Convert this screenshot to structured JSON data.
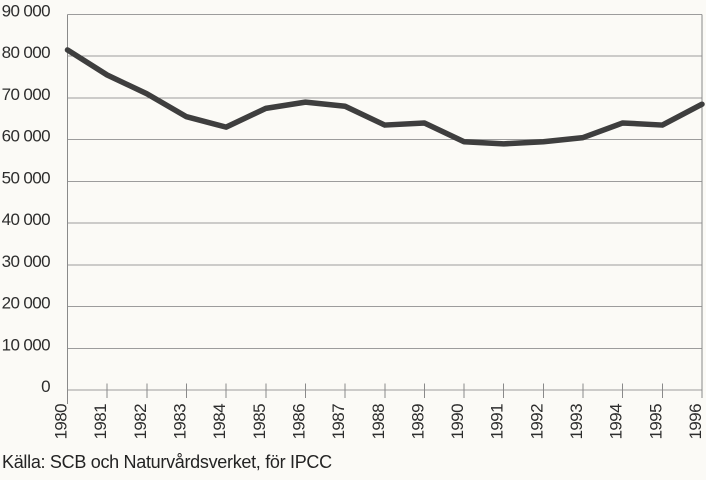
{
  "chart_data": {
    "type": "line",
    "title": "",
    "xlabel": "",
    "ylabel": "",
    "categories": [
      "1980",
      "1981",
      "1982",
      "1983",
      "1984",
      "1985",
      "1986",
      "1987",
      "1988",
      "1989",
      "1990",
      "1991",
      "1992",
      "1993",
      "1994",
      "1995",
      "1996"
    ],
    "values": [
      81500,
      75500,
      71000,
      65500,
      63000,
      67500,
      69000,
      68000,
      63500,
      64000,
      59500,
      59000,
      59500,
      60500,
      64000,
      63500,
      68500
    ],
    "ylim": [
      0,
      90000
    ],
    "y_tick_step": 10000,
    "y_tick_labels": [
      "0",
      "10 000",
      "20 000",
      "30 000",
      "40 000",
      "50 000",
      "60 000",
      "70 000",
      "80 000",
      "90 000"
    ],
    "grid": "horizontal",
    "legend": "none",
    "line_color": "#3e3e3e",
    "source": "Källa: SCB och Naturvårdsverket, för IPCC"
  },
  "colors": {
    "background": "#fbfaf6",
    "grid": "#9c9c9c",
    "axis": "#8a8a8a",
    "text": "#2d2d2d"
  }
}
